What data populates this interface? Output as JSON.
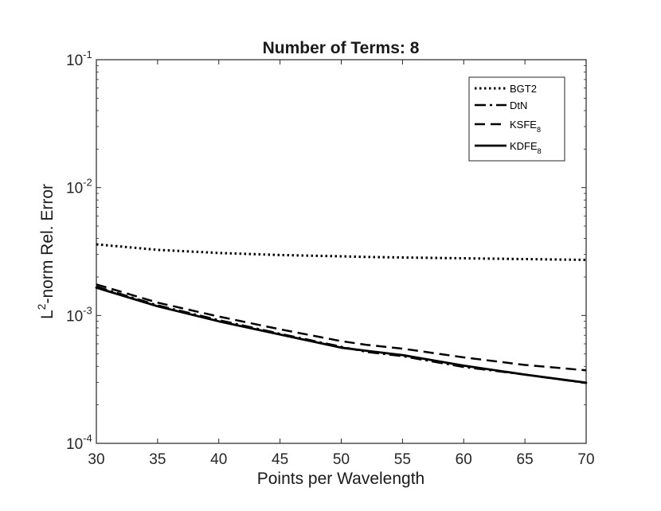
{
  "chart_data": {
    "type": "line",
    "title": "Number of Terms: 8",
    "xlabel": "Points per Wavelength",
    "ylabel": {
      "prefix": "L",
      "sup": "2",
      "rest": "-norm Rel. Error"
    },
    "xlim": [
      30,
      70
    ],
    "ylim": [
      0.0001,
      0.1
    ],
    "yscale": "log",
    "grid": false,
    "legend_position": "top-right",
    "x_ticks": [
      "30",
      "35",
      "40",
      "45",
      "50",
      "55",
      "60",
      "65",
      "70"
    ],
    "y_ticks": [
      {
        "value": 0.0001,
        "base": "10",
        "exp": "-4"
      },
      {
        "value": 0.001,
        "base": "10",
        "exp": "-3"
      },
      {
        "value": 0.01,
        "base": "10",
        "exp": "-2"
      },
      {
        "value": 0.1,
        "base": "10",
        "exp": "-1"
      }
    ],
    "x": [
      30,
      35,
      40,
      45,
      50,
      52,
      55,
      60,
      65,
      70
    ],
    "series": [
      {
        "name": "BGT2",
        "name_sub": "",
        "style": "dotted",
        "width": 3,
        "values": [
          0.0036,
          0.00326,
          0.00308,
          0.00297,
          0.0029,
          0.00287,
          0.00284,
          0.0028,
          0.00276,
          0.00272
        ]
      },
      {
        "name": "DtN",
        "name_sub": "",
        "style": "dashdot",
        "width": 2.5,
        "values": [
          0.00168,
          0.0012,
          0.00092,
          0.00072,
          0.00057,
          0.00052,
          0.00048,
          0.000395,
          0.000345,
          0.000296
        ]
      },
      {
        "name": "KSFE",
        "name_sub": "8",
        "style": "dashed",
        "width": 2.5,
        "values": [
          0.00175,
          0.00126,
          0.00098,
          0.00078,
          0.00063,
          0.00059,
          0.00055,
          0.00047,
          0.00041,
          0.000372
        ]
      },
      {
        "name": "KDFE",
        "name_sub": "8",
        "style": "solid",
        "width": 2.8,
        "values": [
          0.00165,
          0.00118,
          0.0009,
          0.00071,
          0.00056,
          0.00053,
          0.00049,
          0.000405,
          0.000345,
          0.000298
        ]
      }
    ]
  }
}
